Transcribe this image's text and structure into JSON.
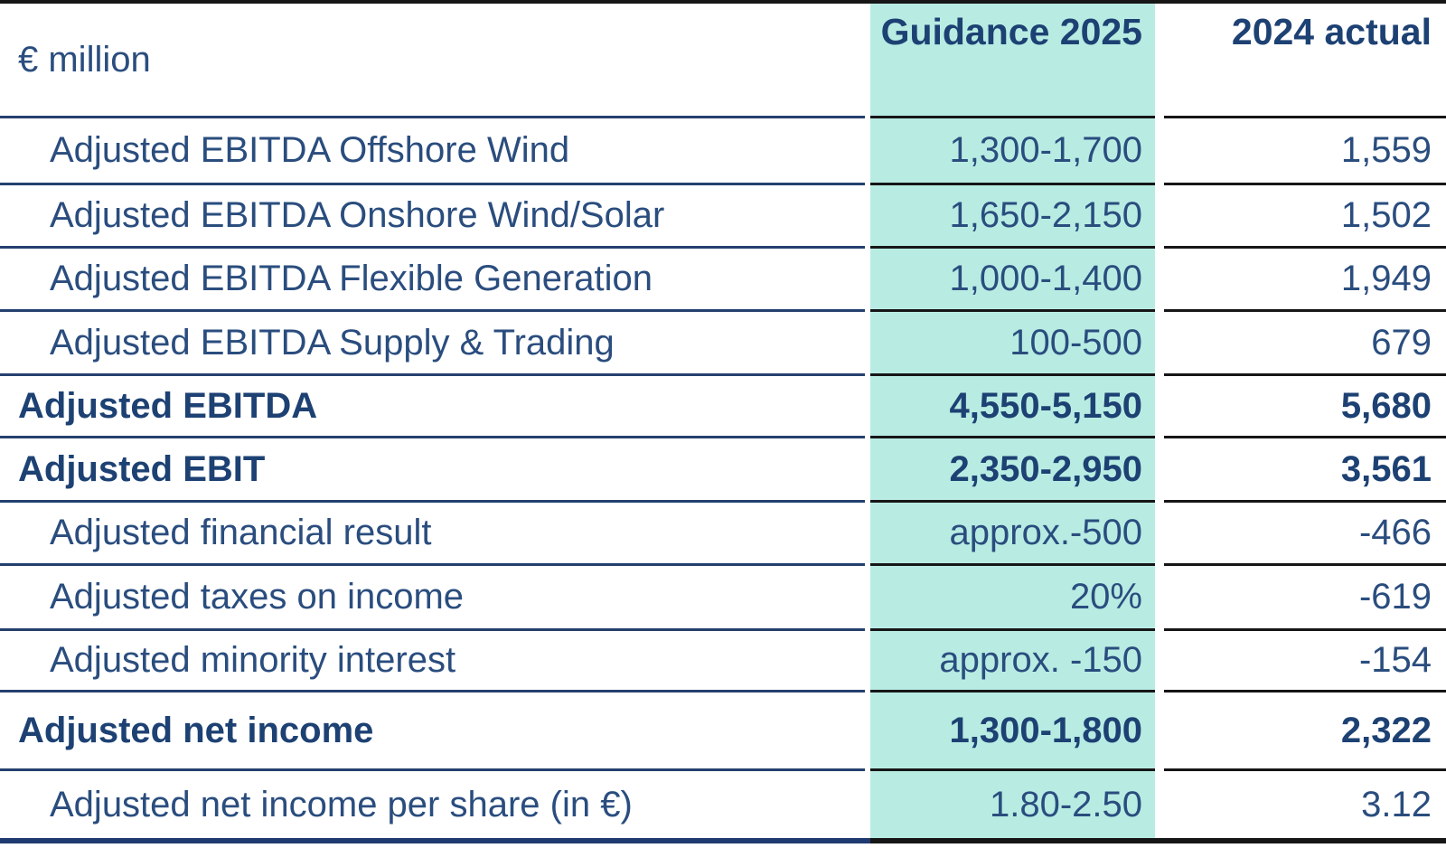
{
  "table": {
    "unit_label": "€ million",
    "columns": {
      "guidance": "Guidance 2025",
      "actual": "2024 actual"
    },
    "rows": [
      {
        "label": "Adjusted EBITDA Offshore Wind",
        "guidance": "1,300-1,700",
        "actual": "1,559",
        "emphasis": false
      },
      {
        "label": "Adjusted EBITDA Onshore Wind/Solar",
        "guidance": "1,650-2,150",
        "actual": "1,502",
        "emphasis": false
      },
      {
        "label": "Adjusted EBITDA Flexible Generation",
        "guidance": "1,000-1,400",
        "actual": "1,949",
        "emphasis": false
      },
      {
        "label": "Adjusted EBITDA Supply & Trading",
        "guidance": "100-500",
        "actual": "679",
        "emphasis": false
      },
      {
        "label": "Adjusted EBITDA",
        "guidance": "4,550-5,150",
        "actual": "5,680",
        "emphasis": true
      },
      {
        "label": "Adjusted EBIT",
        "guidance": "2,350-2,950",
        "actual": "3,561",
        "emphasis": true
      },
      {
        "label": "Adjusted financial result",
        "guidance": "approx.-500",
        "actual": "-466",
        "emphasis": false
      },
      {
        "label": "Adjusted taxes on income",
        "guidance": "20%",
        "actual": "-619",
        "emphasis": false
      },
      {
        "label": "Adjusted minority interest",
        "guidance": "approx. -150",
        "actual": "-154",
        "emphasis": false
      },
      {
        "label": "Adjusted net income",
        "guidance": "1,300-1,800",
        "actual": "2,322",
        "emphasis": true
      },
      {
        "label": "Adjusted net income per share (in €)",
        "guidance": "1.80-2.50",
        "actual": "3.12",
        "emphasis": false
      }
    ],
    "colors": {
      "highlight_column_bg": "#b8ece3",
      "text_regular": "#2a4d7e",
      "text_bold": "#1d4173",
      "line_label_column": "#24406e",
      "line_value_columns": "#161616",
      "top_border": "#161616",
      "bottom_border_left": "#1f3a70",
      "bottom_border_right": "#161616"
    }
  }
}
